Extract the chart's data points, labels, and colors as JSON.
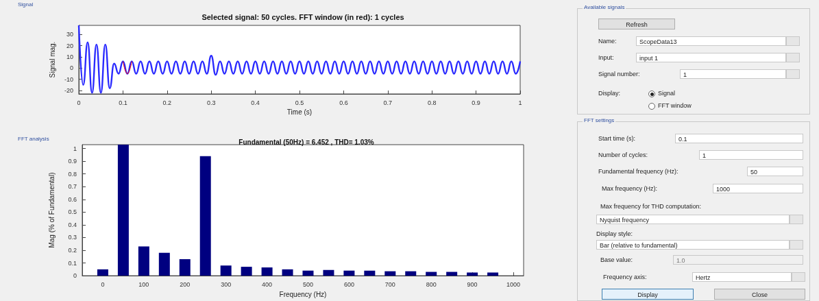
{
  "chart_data": [
    {
      "type": "line",
      "title": "Selected signal: 50 cycles. FFT window (in red): 1 cycles",
      "xlabel": "Time (s)",
      "ylabel": "Signal mag.",
      "annotations": [
        "Signal"
      ],
      "x": [
        0,
        0.01,
        0.02,
        0.03,
        0.04,
        0.05,
        0.06,
        0.07,
        0.08,
        0.09,
        0.1,
        0.11,
        0.12,
        0.13,
        0.14,
        0.15,
        0.16,
        0.17,
        0.18,
        0.19,
        0.2,
        0.21,
        0.22,
        0.23,
        0.24,
        0.25,
        0.26,
        0.27,
        0.28,
        0.29,
        0.3,
        0.31,
        0.32,
        0.33,
        0.34,
        0.35,
        0.36,
        0.37,
        0.38,
        0.39,
        0.4,
        0.41,
        0.42,
        0.43,
        0.44,
        0.45,
        0.46,
        0.47,
        0.48,
        0.49,
        0.5,
        0.51,
        0.52,
        0.53,
        0.54,
        0.55,
        0.56,
        0.57,
        0.58,
        0.59,
        0.6,
        0.61,
        0.62,
        0.63,
        0.64,
        0.65,
        0.66,
        0.67,
        0.68,
        0.69,
        0.7,
        0.71,
        0.72,
        0.73,
        0.74,
        0.75,
        0.76,
        0.77,
        0.78,
        0.79,
        0.8,
        0.81,
        0.82,
        0.83,
        0.84,
        0.85,
        0.86,
        0.87,
        0.88,
        0.89,
        0.9,
        0.91,
        0.92,
        0.93,
        0.94,
        0.95,
        0.96,
        0.97,
        0.98,
        0.99,
        1
      ],
      "series": [
        {
          "color": "#2a2aff",
          "values": [
            38,
            -15,
            23,
            -22,
            21,
            -22,
            21,
            -18,
            4,
            -5,
            6,
            -5,
            6,
            -5,
            6,
            -5,
            6,
            -5,
            6,
            -5,
            6,
            -5,
            6,
            -5,
            6,
            -5,
            6,
            -5,
            6,
            -5,
            11,
            -6,
            6,
            -5,
            6,
            -5,
            6,
            -5,
            6,
            -5,
            6,
            -5,
            6,
            -5,
            6,
            -5,
            6,
            -5,
            6,
            -5,
            6,
            -5,
            6,
            -5,
            6,
            -5,
            6,
            -5,
            6,
            -5,
            6,
            -5,
            6,
            -5,
            6,
            -5,
            6,
            -5,
            6,
            -5,
            6,
            -5,
            6,
            -5,
            6,
            -5,
            6,
            -5,
            6,
            -5,
            6,
            -5,
            6,
            -5,
            6,
            -5,
            6,
            -5,
            6,
            -5,
            6,
            -5,
            6,
            -5,
            6,
            -5,
            6,
            -5,
            6,
            -5,
            6
          ]
        },
        {
          "color": "#ff0000",
          "x": [
            0.1,
            0.11,
            0.12
          ],
          "values": [
            6,
            -5,
            6
          ]
        }
      ],
      "xlim": [
        0,
        1
      ],
      "xticks": [
        0,
        0.1,
        0.2,
        0.3,
        0.4,
        0.5,
        0.6,
        0.7,
        0.8,
        0.9,
        1
      ],
      "ylim": [
        -23,
        38
      ],
      "yticks": [
        -20,
        -10,
        0,
        10,
        20,
        30
      ]
    },
    {
      "type": "bar",
      "title": "Fundamental (50Hz) = 6.452 , THD= 1.03%",
      "xlabel": "Frequency (Hz)",
      "ylabel": "Mag (% of Fundamental)",
      "annotations": [
        "FFT analysis"
      ],
      "x": [
        0,
        50,
        100,
        150,
        200,
        250,
        300,
        350,
        400,
        450,
        500,
        550,
        600,
        650,
        700,
        750,
        800,
        850,
        900,
        950
      ],
      "values": [
        0.05,
        1.03,
        0.23,
        0.18,
        0.13,
        0.94,
        0.08,
        0.07,
        0.065,
        0.05,
        0.04,
        0.045,
        0.04,
        0.04,
        0.035,
        0.035,
        0.03,
        0.03,
        0.025,
        0.025
      ],
      "color": "#000080",
      "xlim": [
        -50,
        1025
      ],
      "xticks": [
        0,
        100,
        200,
        300,
        400,
        500,
        600,
        700,
        800,
        900,
        1000
      ],
      "ylim": [
        0,
        1.03
      ],
      "yticks": [
        0,
        0.1,
        0.2,
        0.3,
        0.4,
        0.5,
        0.6,
        0.7,
        0.8,
        0.9,
        1
      ]
    },
    {
      "type": "other",
      "title": "Available signals",
      "annotations": [
        "Refresh",
        "Name:",
        "ScopeData13",
        "Input:",
        "input 1",
        "Signal number:",
        "1",
        "Display:",
        "Signal",
        "FFT window"
      ]
    },
    {
      "type": "other",
      "title": "FFT settings",
      "annotations": [
        "Start time (s):",
        "0.1",
        "Number of cycles:",
        "1",
        "Fundamental frequency (Hz):",
        "50",
        "Max frequency (Hz):",
        "1000",
        "Max frequency for THD computation:",
        "Nyquist frequency",
        "Display style:",
        "Bar (relative to fundamental)",
        "Base value:",
        "1.0",
        "Frequency axis:",
        "Hertz",
        "Display",
        "Close"
      ]
    }
  ]
}
